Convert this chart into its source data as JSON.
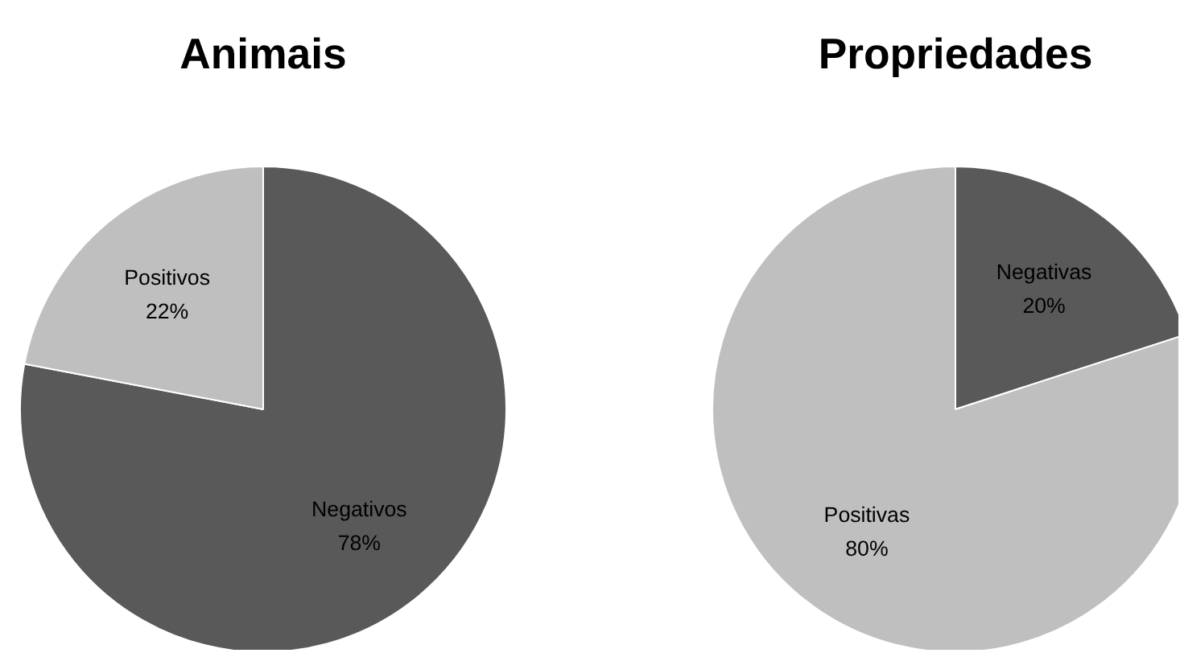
{
  "chart_data": [
    {
      "type": "pie",
      "title": "Animais",
      "categories": [
        "Negativos",
        "Positivos"
      ],
      "values": [
        78,
        22
      ],
      "colors": [
        "#595959",
        "#bfbfbf"
      ],
      "value_labels": [
        "78%",
        "22%"
      ]
    },
    {
      "type": "pie",
      "title": "Propriedades",
      "categories": [
        "Negativas",
        "Positivas"
      ],
      "values": [
        20,
        80
      ],
      "colors": [
        "#595959",
        "#bfbfbf"
      ],
      "value_labels": [
        "20%",
        "80%"
      ]
    }
  ]
}
